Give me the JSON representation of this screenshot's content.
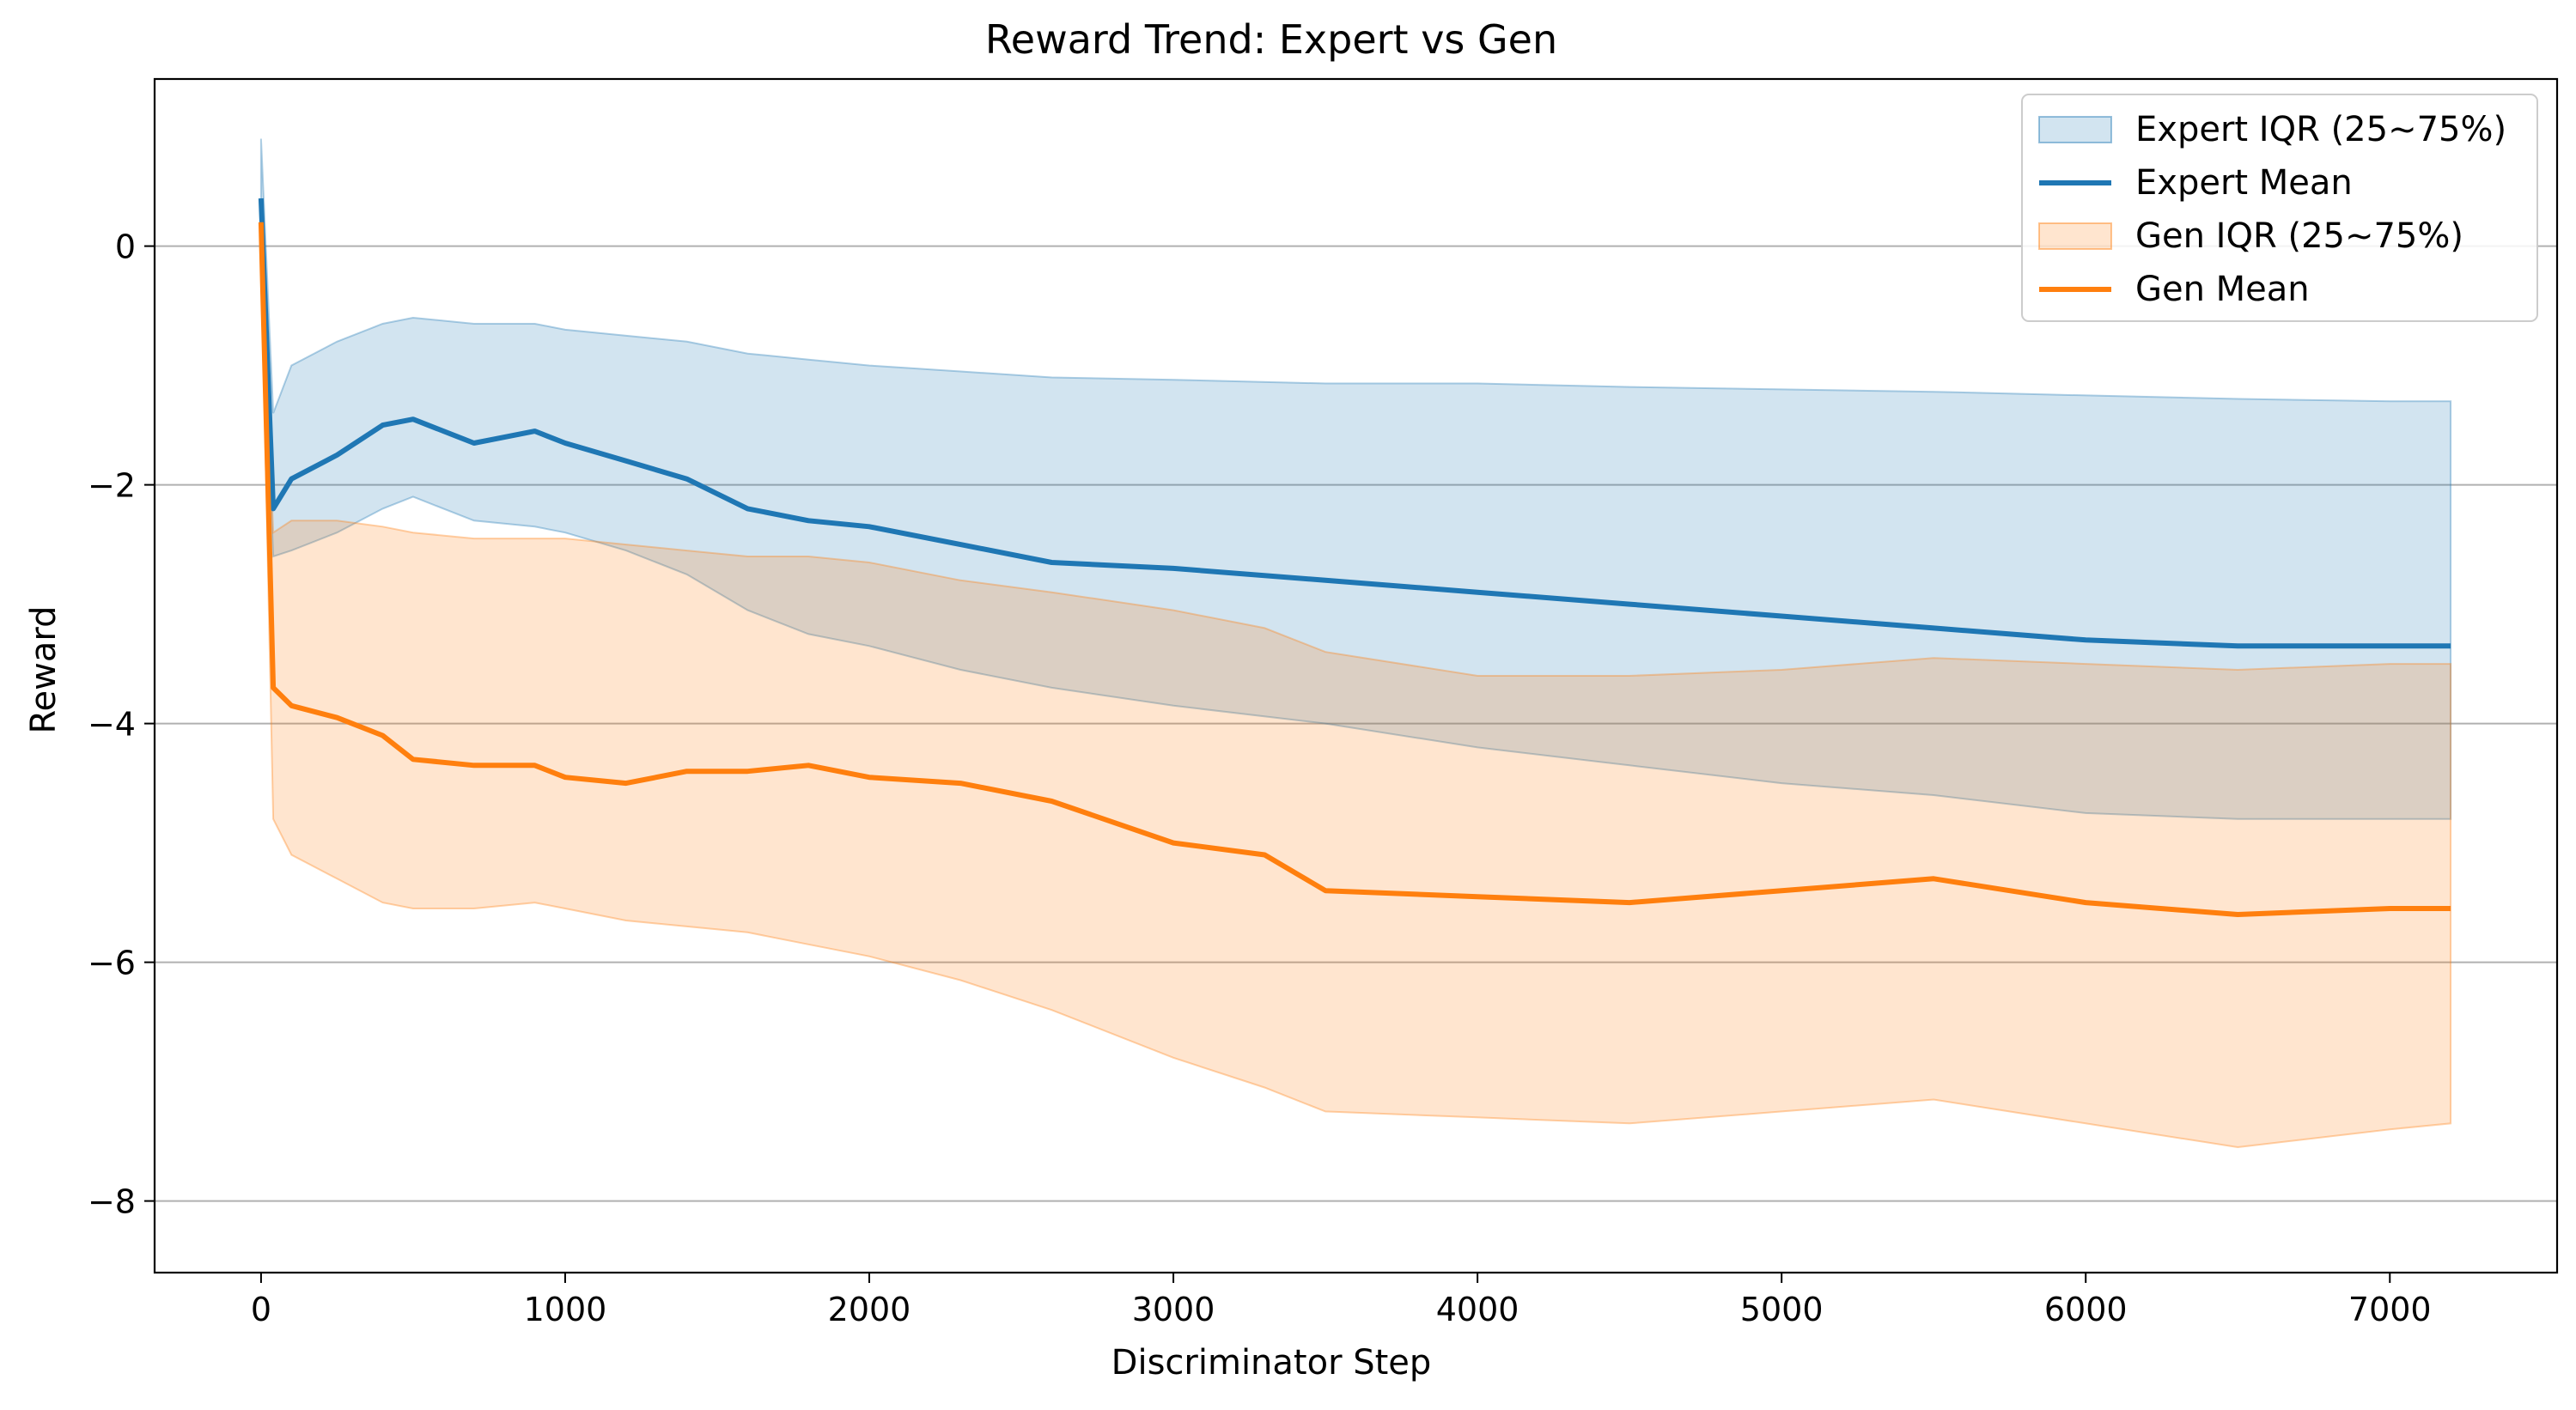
{
  "chart_data": {
    "type": "line",
    "title": "Reward Trend: Expert vs Gen",
    "xlabel": "Discriminator Step",
    "ylabel": "Reward",
    "xlim": [
      -350,
      7550
    ],
    "ylim": [
      -8.6,
      1.4
    ],
    "xticks": [
      0,
      1000,
      2000,
      3000,
      4000,
      5000,
      6000,
      7000
    ],
    "xtick_labels": [
      "0",
      "1000",
      "2000",
      "3000",
      "4000",
      "5000",
      "6000",
      "7000"
    ],
    "yticks": [
      0,
      -2,
      -4,
      -6,
      -8
    ],
    "ytick_labels": [
      "0",
      "−2",
      "−4",
      "−6",
      "−8"
    ],
    "grid": "horizontal",
    "legend_position": "top-right",
    "colors": {
      "expert": "#1f77b4",
      "gen": "#ff7f0e",
      "expert_band": "#1f77b4",
      "gen_band": "#ff7f0e",
      "grid": "#b0b0b0"
    },
    "legend": [
      {
        "label": "Expert IQR (25~75%)",
        "kind": "band",
        "series": "expert"
      },
      {
        "label": "Expert Mean",
        "kind": "line",
        "series": "expert"
      },
      {
        "label": "Gen IQR (25~75%)",
        "kind": "band",
        "series": "gen"
      },
      {
        "label": "Gen Mean",
        "kind": "line",
        "series": "gen"
      }
    ],
    "series": [
      {
        "name": "Expert Mean",
        "key": "expert",
        "x": [
          0,
          40,
          100,
          250,
          400,
          500,
          700,
          900,
          1000,
          1200,
          1400,
          1600,
          1800,
          2000,
          2300,
          2600,
          3000,
          3500,
          4000,
          4500,
          5000,
          5500,
          6000,
          6500,
          7000,
          7200
        ],
        "mean": [
          0.4,
          -2.2,
          -1.95,
          -1.75,
          -1.5,
          -1.45,
          -1.65,
          -1.55,
          -1.65,
          -1.8,
          -1.95,
          -2.2,
          -2.3,
          -2.35,
          -2.5,
          -2.65,
          -2.7,
          -2.8,
          -2.9,
          -3.0,
          -3.1,
          -3.2,
          -3.3,
          -3.35,
          -3.35,
          -3.35
        ],
        "q75": [
          0.9,
          -1.4,
          -1.0,
          -0.8,
          -0.65,
          -0.6,
          -0.65,
          -0.65,
          -0.7,
          -0.75,
          -0.8,
          -0.9,
          -0.95,
          -1.0,
          -1.05,
          -1.1,
          -1.12,
          -1.15,
          -1.15,
          -1.18,
          -1.2,
          -1.22,
          -1.25,
          -1.28,
          -1.3,
          -1.3
        ],
        "q25": [
          0.0,
          -2.6,
          -2.55,
          -2.4,
          -2.2,
          -2.1,
          -2.3,
          -2.35,
          -2.4,
          -2.55,
          -2.75,
          -3.05,
          -3.25,
          -3.35,
          -3.55,
          -3.7,
          -3.85,
          -4.0,
          -4.2,
          -4.35,
          -4.5,
          -4.6,
          -4.75,
          -4.8,
          -4.8,
          -4.8
        ]
      },
      {
        "name": "Gen Mean",
        "key": "gen",
        "x": [
          0,
          40,
          100,
          250,
          400,
          500,
          700,
          900,
          1000,
          1200,
          1400,
          1600,
          1800,
          2000,
          2300,
          2600,
          3000,
          3300,
          3500,
          4000,
          4500,
          5000,
          5500,
          6000,
          6500,
          7000,
          7200
        ],
        "mean": [
          0.2,
          -3.7,
          -3.85,
          -3.95,
          -4.1,
          -4.3,
          -4.35,
          -4.35,
          -4.45,
          -4.5,
          -4.4,
          -4.4,
          -4.35,
          -4.45,
          -4.5,
          -4.65,
          -5.0,
          -5.1,
          -5.4,
          -5.45,
          -5.5,
          -5.4,
          -5.3,
          -5.5,
          -5.6,
          -5.55,
          -5.55
        ],
        "q75": [
          0.1,
          -2.4,
          -2.3,
          -2.3,
          -2.35,
          -2.4,
          -2.45,
          -2.45,
          -2.45,
          -2.5,
          -2.55,
          -2.6,
          -2.6,
          -2.65,
          -2.8,
          -2.9,
          -3.05,
          -3.2,
          -3.4,
          -3.6,
          -3.6,
          -3.55,
          -3.45,
          -3.5,
          -3.55,
          -3.5,
          -3.5
        ],
        "q25": [
          0.0,
          -4.8,
          -5.1,
          -5.3,
          -5.5,
          -5.55,
          -5.55,
          -5.5,
          -5.55,
          -5.65,
          -5.7,
          -5.75,
          -5.85,
          -5.95,
          -6.15,
          -6.4,
          -6.8,
          -7.05,
          -7.25,
          -7.3,
          -7.35,
          -7.25,
          -7.15,
          -7.35,
          -7.55,
          -7.4,
          -7.35
        ]
      }
    ]
  }
}
